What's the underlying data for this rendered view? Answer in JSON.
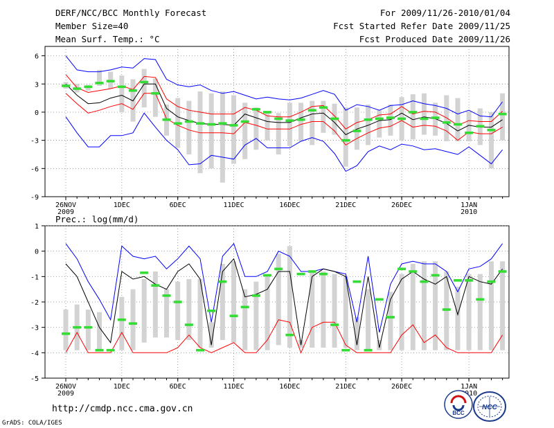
{
  "header": {
    "left": [
      "DERF/NCC/BCC Monthly Forecast",
      "Member Size=40",
      "Mean Surf. Temp.: °C"
    ],
    "right": [
      "For 2009/11/26-2010/01/04",
      "Fcst Started Refer Date 2009/11/25",
      "Fcst Produced Date 2009/11/26"
    ]
  },
  "footer": {
    "url": "http://cmdp.ncc.cma.gov.cn",
    "credit": "GrADS: COLA/IGES",
    "logo_bcc": "BCC",
    "logo_ncc": "NCC"
  },
  "colors": {
    "outer": "#0000ff",
    "inner": "#ff0000",
    "mean": "#000000",
    "bar": "#d3d3d3",
    "obs": "#33dd33",
    "grid": "#777777"
  },
  "chart_data": [
    {
      "type": "line",
      "title": "Mean Surf. Temp.: °C",
      "x": [
        "26NOV",
        "27NOV",
        "28NOV",
        "29NOV",
        "30NOV",
        "1DEC",
        "2DEC",
        "3DEC",
        "4DEC",
        "5DEC",
        "6DEC",
        "7DEC",
        "8DEC",
        "9DEC",
        "10DEC",
        "11DEC",
        "12DEC",
        "13DEC",
        "14DEC",
        "15DEC",
        "16DEC",
        "17DEC",
        "18DEC",
        "19DEC",
        "20DEC",
        "21DEC",
        "22DEC",
        "23DEC",
        "24DEC",
        "25DEC",
        "26DEC",
        "27DEC",
        "28DEC",
        "29DEC",
        "30DEC",
        "31DEC",
        "1JAN",
        "2JAN",
        "3JAN",
        "4JAN"
      ],
      "xticks": [
        {
          "i": 0,
          "label": "26NOV",
          "sub": "2009"
        },
        {
          "i": 5,
          "label": "1DEC"
        },
        {
          "i": 10,
          "label": "6DEC"
        },
        {
          "i": 15,
          "label": "11DEC"
        },
        {
          "i": 20,
          "label": "16DEC"
        },
        {
          "i": 25,
          "label": "21DEC"
        },
        {
          "i": 30,
          "label": "26DEC"
        },
        {
          "i": 36,
          "label": "1JAN",
          "sub": "2010"
        }
      ],
      "ylim": [
        -9,
        7
      ],
      "yticks": [
        -9,
        -6,
        -3,
        0,
        3,
        6
      ],
      "series": [
        {
          "name": "max",
          "style": "outer",
          "values": [
            6,
            4.5,
            4.3,
            4.3,
            4.5,
            4.8,
            4.7,
            5.7,
            5.6,
            3.5,
            2.9,
            2.7,
            2.9,
            2.3,
            2,
            2.2,
            1.8,
            1.4,
            1.6,
            1.4,
            1.3,
            1.5,
            1.9,
            2.3,
            1.9,
            0.2,
            0.8,
            0.6,
            0.2,
            0.7,
            0.8,
            1.2,
            0.9,
            0.7,
            0.4,
            -0.2,
            0.2,
            -0.4,
            -0.5,
            1.1
          ]
        },
        {
          "name": "upper",
          "style": "inner",
          "values": [
            4,
            2.6,
            2.1,
            2.3,
            2.5,
            2.8,
            2.4,
            3.8,
            3.7,
            1.4,
            0.6,
            0.2,
            0,
            -0.2,
            -0.2,
            -0.2,
            0.5,
            0.2,
            -0.4,
            -0.5,
            -0.5,
            0,
            0.6,
            0.7,
            -0.4,
            -1.8,
            -1.1,
            -0.8,
            -0.3,
            -0.2,
            0.6,
            -0.2,
            0.1,
            0,
            -0.6,
            -1.4,
            -0.9,
            -1,
            -1,
            0.1
          ]
        },
        {
          "name": "mean",
          "style": "mean",
          "values": [
            3,
            1.8,
            0.9,
            1,
            1.5,
            1.8,
            1.2,
            3,
            3,
            0.4,
            -0.5,
            -0.9,
            -1.2,
            -1.3,
            -1.3,
            -1.4,
            -0.2,
            -0.6,
            -1,
            -1.1,
            -1.1,
            -0.6,
            -0.2,
            -0.1,
            -1.1,
            -2.4,
            -1.8,
            -1.4,
            -0.9,
            -0.8,
            -0.1,
            -0.8,
            -0.5,
            -0.7,
            -1.2,
            -2,
            -1.4,
            -1.6,
            -1.6,
            -0.8
          ]
        },
        {
          "name": "lower",
          "style": "inner",
          "values": [
            2,
            0.9,
            -0.1,
            0.2,
            0.6,
            0.9,
            0.3,
            2,
            2,
            -0.7,
            -1.4,
            -1.9,
            -2.2,
            -2.2,
            -2.2,
            -2.3,
            -1.1,
            -1.4,
            -1.8,
            -1.8,
            -1.8,
            -1.3,
            -1,
            -1,
            -2,
            -3.5,
            -2.8,
            -2.2,
            -1.7,
            -1.5,
            -0.9,
            -1.6,
            -1.4,
            -1.5,
            -2,
            -3,
            -2.1,
            -2.3,
            -2.3,
            -1.6
          ]
        },
        {
          "name": "min",
          "style": "outer",
          "values": [
            -0.5,
            -2.2,
            -3.7,
            -3.7,
            -2.5,
            -2.5,
            -2.2,
            -0.1,
            -1.6,
            -3,
            -4,
            -5.6,
            -5.5,
            -4.6,
            -4.8,
            -5,
            -3.5,
            -2.8,
            -3.8,
            -3.8,
            -3.8,
            -3.1,
            -2.7,
            -3.1,
            -4.4,
            -6.3,
            -5.7,
            -4.2,
            -3.6,
            -4,
            -3.4,
            -3.6,
            -4,
            -3.9,
            -4.2,
            -4.5,
            -3.7,
            -4.6,
            -5.5,
            -4
          ]
        }
      ],
      "bars": [
        [
          2.5,
          3.2
        ],
        [
          2.1,
          3
        ],
        [
          2.3,
          2.9
        ],
        [
          2.8,
          4.5
        ],
        [
          2.5,
          4.3
        ],
        [
          0,
          3.9
        ],
        [
          -1,
          3.5
        ],
        [
          0.5,
          4.6
        ],
        [
          -0.5,
          3.6
        ],
        [
          -2.5,
          0.8
        ],
        [
          -3.8,
          1.5
        ],
        [
          -4.5,
          1.2
        ],
        [
          -6.5,
          2.2
        ],
        [
          -6,
          2
        ],
        [
          -7.5,
          2.2
        ],
        [
          -5.5,
          1.8
        ],
        [
          -5,
          1
        ],
        [
          -4,
          0.5
        ],
        [
          -3,
          -0.1
        ],
        [
          -4.5,
          -0.1
        ],
        [
          -3.6,
          1
        ],
        [
          -3.1,
          1
        ],
        [
          -3.5,
          1.2
        ],
        [
          -2.2,
          1.2
        ],
        [
          -2.4,
          0.9
        ],
        [
          -5.8,
          0.5
        ],
        [
          -4,
          0.5
        ],
        [
          -3.5,
          0.8
        ],
        [
          -2.7,
          0.2
        ],
        [
          -2.5,
          0.8
        ],
        [
          -3,
          1.6
        ],
        [
          -2.9,
          1.9
        ],
        [
          -2.4,
          2
        ],
        [
          -2.5,
          1
        ],
        [
          -3.1,
          1.8
        ],
        [
          -3.1,
          1.5
        ],
        [
          -3.1,
          0.1
        ],
        [
          -3.5,
          0.4
        ],
        [
          -6,
          0
        ],
        [
          -3,
          2
        ]
      ],
      "obs": [
        2.8,
        2.5,
        2.7,
        3.1,
        3.3,
        2.7,
        2.3,
        3.2,
        2,
        -0.8,
        -1.2,
        -1,
        -1.2,
        -1.3,
        -1.2,
        -1.4,
        -1,
        0.3,
        0,
        -0.7,
        -0.9,
        -0.8,
        0.2,
        0.5,
        -0.7,
        -3,
        -2,
        -0.8,
        -0.7,
        -0.6,
        -0.7,
        0,
        -0.7,
        -0.6,
        -1.1,
        -1.3,
        -2.2,
        -1.5,
        -1.9,
        -0.2
      ]
    },
    {
      "type": "line",
      "title": "Prec.: log(mm/d)",
      "x": [
        "26NOV",
        "27NOV",
        "28NOV",
        "29NOV",
        "30NOV",
        "1DEC",
        "2DEC",
        "3DEC",
        "4DEC",
        "5DEC",
        "6DEC",
        "7DEC",
        "8DEC",
        "9DEC",
        "10DEC",
        "11DEC",
        "12DEC",
        "13DEC",
        "14DEC",
        "15DEC",
        "16DEC",
        "17DEC",
        "18DEC",
        "19DEC",
        "20DEC",
        "21DEC",
        "22DEC",
        "23DEC",
        "24DEC",
        "25DEC",
        "26DEC",
        "27DEC",
        "28DEC",
        "29DEC",
        "30DEC",
        "31DEC",
        "1JAN",
        "2JAN",
        "3JAN",
        "4JAN"
      ],
      "xticks": [
        {
          "i": 0,
          "label": "26NOV",
          "sub": "2009"
        },
        {
          "i": 5,
          "label": "1DEC"
        },
        {
          "i": 10,
          "label": "6DEC"
        },
        {
          "i": 15,
          "label": "11DEC"
        },
        {
          "i": 20,
          "label": "16DEC"
        },
        {
          "i": 25,
          "label": "21DEC"
        },
        {
          "i": 30,
          "label": "26DEC"
        },
        {
          "i": 36,
          "label": "1JAN",
          "sub": "2010"
        }
      ],
      "ylim": [
        -5,
        1
      ],
      "yticks": [
        -5,
        -4,
        -3,
        -2,
        -1,
        0,
        1
      ],
      "series": [
        {
          "name": "max",
          "style": "outer",
          "values": [
            0.3,
            -0.3,
            -1.2,
            -1.9,
            -2.7,
            0.2,
            -0.2,
            -0.3,
            -0.2,
            -0.7,
            -0.3,
            0.2,
            -0.3,
            -2.8,
            -0.2,
            0.3,
            -1,
            -1,
            -0.8,
            0,
            -0.2,
            -0.8,
            -0.8,
            -0.7,
            -0.8,
            -0.9,
            -2.8,
            -0.2,
            -3.2,
            -1.3,
            -0.5,
            -0.4,
            -0.5,
            -0.5,
            -0.8,
            -1.6,
            -0.7,
            -0.6,
            -0.3,
            0.3
          ]
        },
        {
          "name": "mean",
          "style": "mean",
          "values": [
            -0.5,
            -1,
            -2,
            -3,
            -3.6,
            -0.8,
            -1.1,
            -1,
            -1.3,
            -1.5,
            -0.8,
            -0.5,
            -1.1,
            -3.7,
            -0.8,
            -0.3,
            -1.8,
            -1.7,
            -1.5,
            -0.8,
            -0.8,
            -3.7,
            -1,
            -0.7,
            -0.8,
            -1,
            -3.7,
            -1,
            -3.8,
            -1.9,
            -1.1,
            -0.8,
            -1.1,
            -1.3,
            -1,
            -2.5,
            -1,
            -1.2,
            -1.3,
            -0.7
          ]
        },
        {
          "name": "min",
          "style": "inner",
          "values": [
            -4,
            -3.2,
            -4,
            -4,
            -4,
            -3.2,
            -4,
            -4,
            -4,
            -4,
            -3.8,
            -3.3,
            -3.8,
            -4,
            -3.8,
            -3.6,
            -4,
            -4,
            -3.5,
            -2.7,
            -2.8,
            -4,
            -3,
            -2.8,
            -2.8,
            -3.7,
            -4,
            -4,
            -4,
            -4,
            -3.3,
            -2.9,
            -3.6,
            -3.3,
            -3.8,
            -4,
            -4,
            -4,
            -4,
            -3.3
          ]
        }
      ],
      "bars": [
        [
          -3.9,
          -2.3
        ],
        [
          -3.9,
          -2.1
        ],
        [
          -3.9,
          -2.3
        ],
        [
          -3.9,
          -2.4
        ],
        [
          -3.9,
          -3.9
        ],
        [
          -3.9,
          -1.8
        ],
        [
          -3.9,
          -1.5
        ],
        [
          -3.6,
          -1.1
        ],
        [
          -3.4,
          -0.8
        ],
        [
          -3.4,
          -1.5
        ],
        [
          -3.5,
          -1.2
        ],
        [
          -3.5,
          -1.1
        ],
        [
          -3.8,
          -1.1
        ],
        [
          -3.8,
          -2.8
        ],
        [
          -3.5,
          -0.5
        ],
        [
          -3.6,
          -0.4
        ],
        [
          -3.9,
          -1.5
        ],
        [
          -3.9,
          -1.2
        ],
        [
          -3.9,
          -1
        ],
        [
          -3.7,
          -0.1
        ],
        [
          -3.8,
          0.2
        ],
        [
          -3.8,
          -3.5
        ],
        [
          -3.8,
          -0.8
        ],
        [
          -3.8,
          -0.8
        ],
        [
          -3.8,
          -0.9
        ],
        [
          -3.8,
          -1
        ],
        [
          -3.9,
          -2.6
        ],
        [
          -3.9,
          -1.5
        ],
        [
          -3.9,
          -3.5
        ],
        [
          -3.9,
          -1.6
        ],
        [
          -3.9,
          -0.9
        ],
        [
          -3.9,
          -0.5
        ],
        [
          -3.9,
          -0.4
        ],
        [
          -3.9,
          -0.4
        ],
        [
          -3.9,
          -0.8
        ],
        [
          -3.9,
          -1.4
        ],
        [
          -3.9,
          -0.9
        ],
        [
          -3.9,
          -0.9
        ],
        [
          -3.9,
          -0.4
        ],
        [
          -3.9,
          -0.4
        ]
      ],
      "obs": [
        -3.25,
        -3,
        -3,
        -3.9,
        -3.9,
        -2.7,
        -2.85,
        -0.85,
        -1.35,
        -1.75,
        -2,
        -2.9,
        -3.9,
        -2.35,
        -1.2,
        -2.55,
        -2.2,
        -1.75,
        -0.95,
        -0.7,
        -3.3,
        -0.9,
        -0.8,
        -0.9,
        -2.9,
        -3.9,
        -1.2,
        -3.9,
        -1.9,
        -2.6,
        -0.7,
        -0.8,
        -1.2,
        -0.95,
        -2.3,
        -1.15,
        -1.15,
        -1.9,
        -1.2,
        -0.8
      ]
    }
  ]
}
